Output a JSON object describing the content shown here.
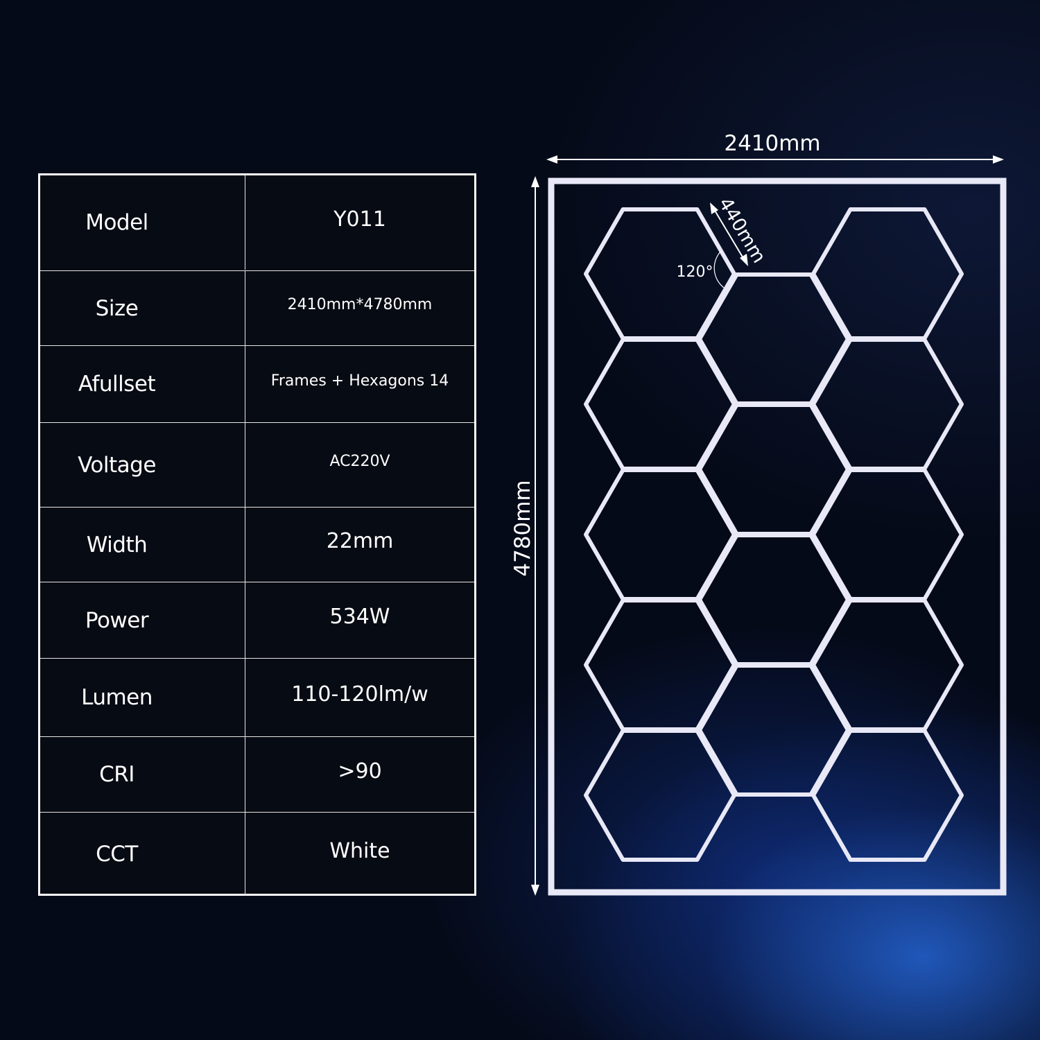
{
  "specs": [
    {
      "label": "Model",
      "value": "Y011"
    },
    {
      "label": "Size",
      "value": "2410mm*4780mm"
    },
    {
      "label": "Afullset",
      "value": "Frames + Hexagons 14"
    },
    {
      "label": "Voltage",
      "value": "AC220V"
    },
    {
      "label": "Width",
      "value": "22mm"
    },
    {
      "label": "Power",
      "value": "534W"
    },
    {
      "label": "Lumen",
      "value": "110-120lm/w"
    },
    {
      "label": "CRI",
      "value": ">90"
    },
    {
      "label": "CCT",
      "value": "White"
    }
  ],
  "diagram": {
    "width_label": "2410mm",
    "height_label": "4780mm",
    "side_label": "440mm",
    "angle_label": "120°",
    "light_color": "#e8e8f6",
    "background_color": "#050a18",
    "glow_color": "#2a6ee6"
  }
}
